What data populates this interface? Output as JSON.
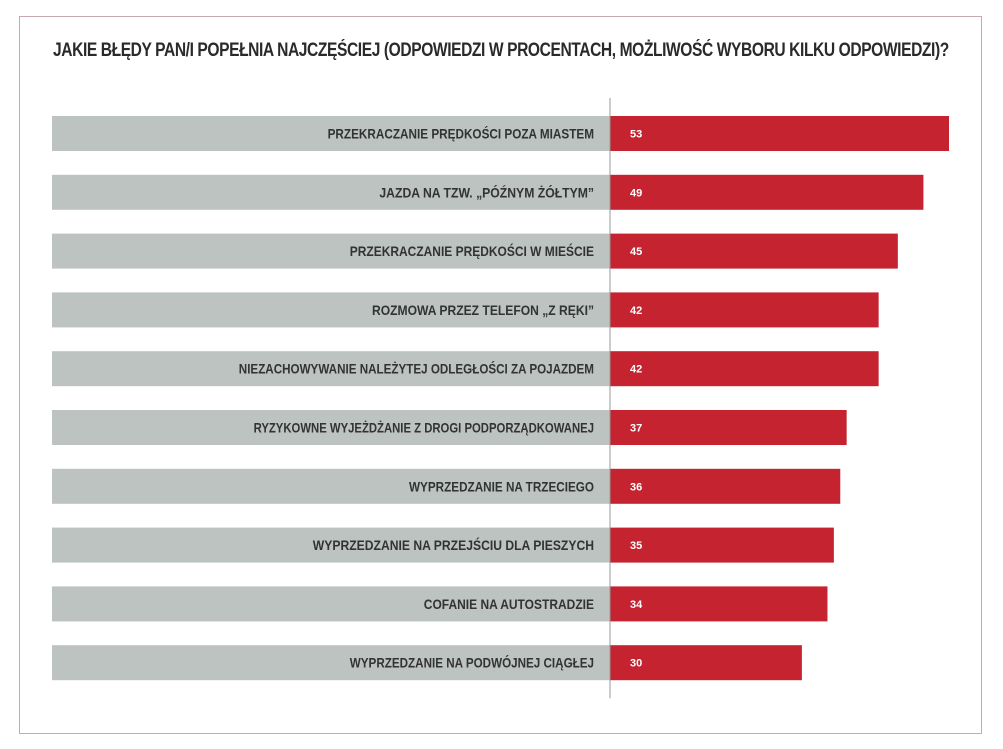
{
  "colors": {
    "bar": "#c4232f",
    "label_background": "#bcc3c0",
    "axis_line": "#9a9a9a",
    "frame": "#c9a9ae"
  },
  "chart_data": {
    "type": "bar",
    "orientation": "horizontal",
    "title": "JAKIE BŁĘDY PAN/I POPEŁNIA NAJCZĘŚCIEJ (ODPOWIEDZI W PROCENTACH, MOŻLIWOŚĆ WYBORU KILKU ODPOWIEDZI)?",
    "categories": [
      "PRZEKRACZANIE PRĘDKOŚCI POZA MIASTEM",
      "JAZDA NA TZW. „PÓŹNYM ŻÓŁTYM”",
      "PRZEKRACZANIE PRĘDKOŚCI W MIEŚCIE",
      "ROZMOWA PRZEZ TELEFON „Z RĘKI”",
      "NIEZACHOWYWANIE NALEŻYTEJ ODLEGŁOŚCI ZA POJAZDEM",
      "RYZYKOWNE WYJEŻDŻANIE Z DROGI PODPORZĄDKOWANEJ",
      "WYPRZEDZANIE NA TRZECIEGO",
      "WYPRZEDZANIE NA PRZEJŚCIU DLA PIESZYCH",
      "COFANIE NA AUTOSTRADZIE",
      "WYPRZEDZANIE NA PODWÓJNEJ CIĄGŁEJ"
    ],
    "values": [
      53,
      49,
      45,
      42,
      42,
      37,
      36,
      35,
      34,
      30
    ],
    "data_labels": true,
    "legend": "none",
    "grid": false
  }
}
